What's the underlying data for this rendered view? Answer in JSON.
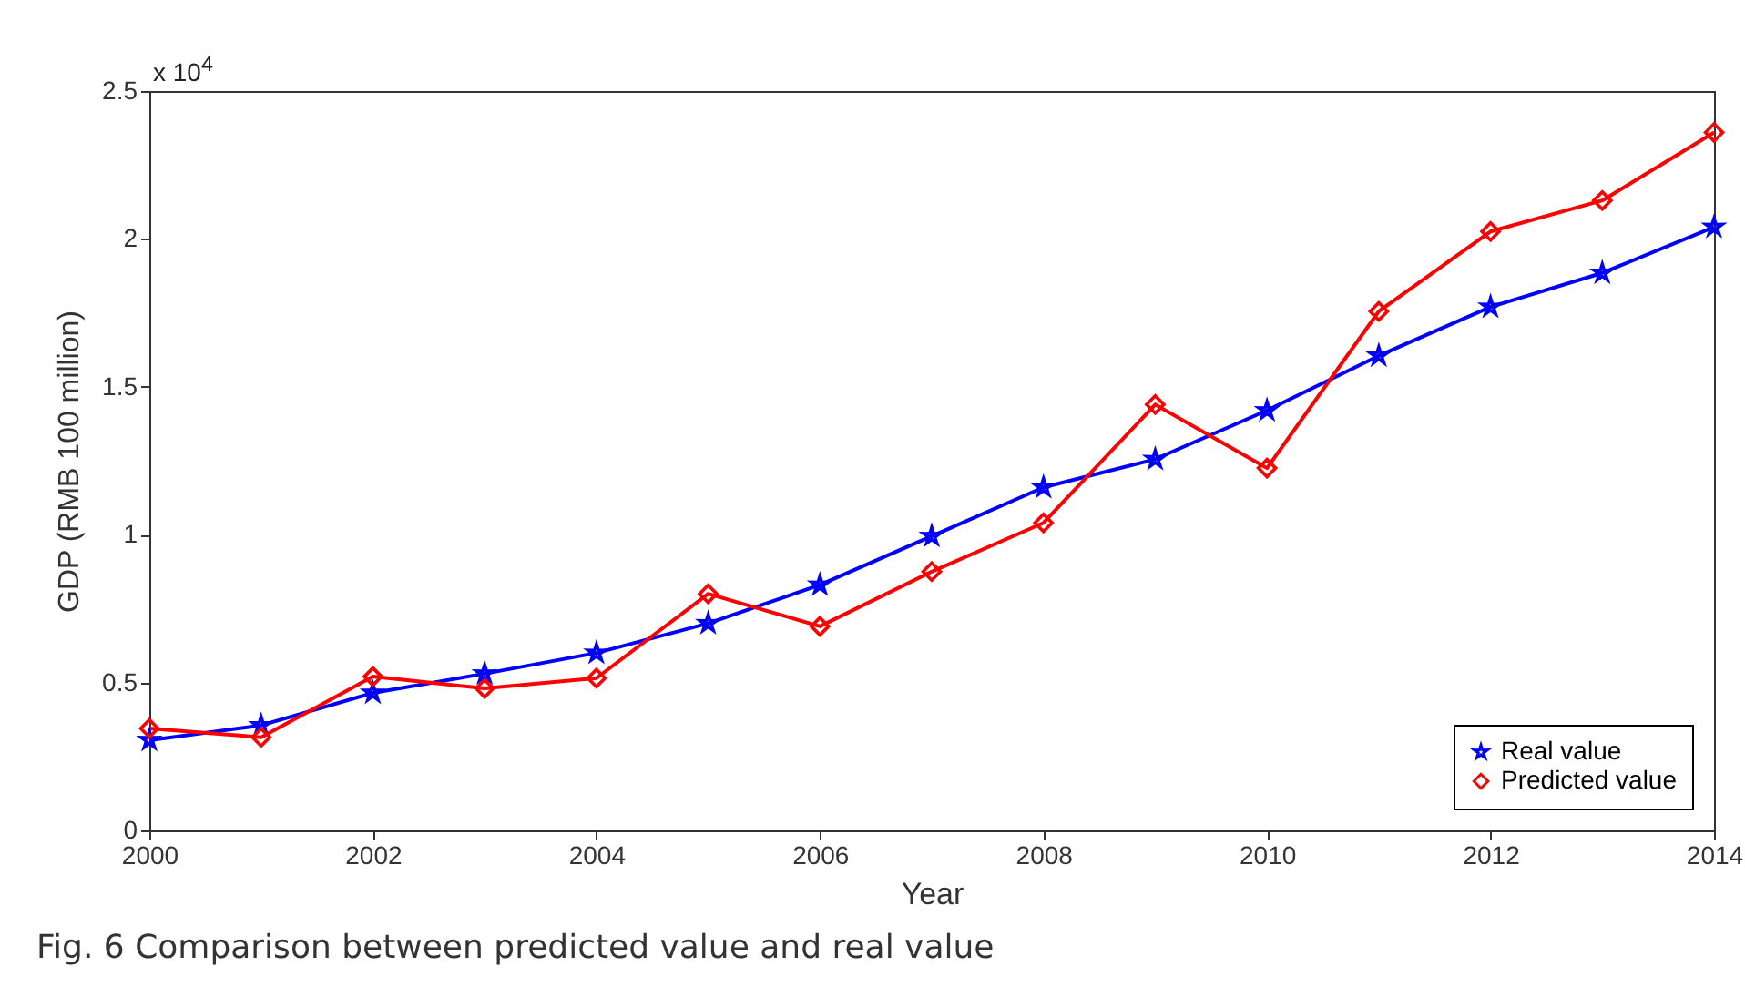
{
  "chart_data": {
    "type": "line",
    "xlabel": "Year",
    "ylabel": "GDP (RMB 100 million)",
    "x": [
      2000,
      2001,
      2002,
      2003,
      2004,
      2005,
      2006,
      2007,
      2008,
      2009,
      2010,
      2011,
      2012,
      2013,
      2014
    ],
    "series": [
      {
        "name": "Real value",
        "color": "#0000ff",
        "marker": "star",
        "values": [
          0.305,
          0.355,
          0.465,
          0.53,
          0.6,
          0.7,
          0.83,
          0.995,
          1.16,
          1.255,
          1.42,
          1.605,
          1.77,
          1.885,
          2.04
        ]
      },
      {
        "name": "Predicted value",
        "color": "#ff0000",
        "marker": "diamond",
        "values": [
          0.345,
          0.315,
          0.52,
          0.48,
          0.515,
          0.8,
          0.69,
          0.875,
          1.04,
          1.44,
          1.225,
          1.755,
          2.025,
          2.13,
          2.36
        ]
      }
    ],
    "xlim": [
      2000,
      2014
    ],
    "xticks": [
      2000,
      2002,
      2004,
      2006,
      2008,
      2010,
      2012,
      2014
    ],
    "ylim": [
      0,
      2.5
    ],
    "yticks": [
      0,
      0.5,
      1,
      1.5,
      2,
      2.5
    ],
    "grid": false,
    "legend": "bottom right",
    "line_style": "solid",
    "annotations": [
      "x 10$^{4}$",
      "Fig. 6 Comparison between predicted value and real value"
    ]
  }
}
